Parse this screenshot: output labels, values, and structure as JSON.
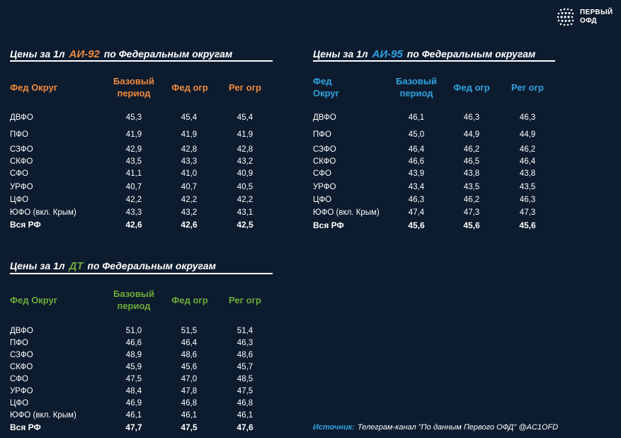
{
  "logo": {
    "line1": "ПЕРВЫЙ",
    "line2": "ОФД"
  },
  "colors": {
    "ai92": "#f08a3c",
    "ai95": "#2ea3e0",
    "dt": "#6cab3a",
    "background": "#0d1b2e"
  },
  "ai92": {
    "title_pre": "Цены за 1л",
    "fuel": "АИ-92",
    "title_post": "по Федеральным округам",
    "headers": {
      "district": "Фед Округ",
      "base_1": "Базовый",
      "base_2": "период",
      "fed": "Фед огр",
      "reg": "Рег огр"
    },
    "rows": [
      {
        "name": "ДВФО",
        "base": "45,3",
        "fed": "45,4",
        "reg": "45,4"
      },
      {
        "name": "ПФО",
        "base": "41,9",
        "fed": "41,9",
        "reg": "41,9"
      },
      {
        "name": "СЗФО",
        "base": "42,9",
        "fed": "42,8",
        "reg": "42,8"
      },
      {
        "name": "СКФО",
        "base": "43,5",
        "fed": "43,3",
        "reg": "43,2"
      },
      {
        "name": "СФО",
        "base": "41,1",
        "fed": "41,0",
        "reg": "40,9"
      },
      {
        "name": "УРФО",
        "base": "40,7",
        "fed": "40,7",
        "reg": "40,5"
      },
      {
        "name": "ЦФО",
        "base": "42,2",
        "fed": "42,2",
        "reg": "42,2"
      },
      {
        "name": "ЮФО (вкл. Крым)",
        "base": "43,3",
        "fed": "43,2",
        "reg": "43,1"
      }
    ],
    "total": {
      "name": "Вся РФ",
      "base": "42,6",
      "fed": "42,6",
      "reg": "42,5"
    }
  },
  "ai95": {
    "title_pre": "Цены за 1л",
    "fuel": "АИ-95",
    "title_post": "по Федеральным округам",
    "headers": {
      "district_1": "Фед",
      "district_2": "Округ",
      "base_1": "Базовый",
      "base_2": "период",
      "fed": "Фед огр",
      "reg": "Рег огр"
    },
    "rows": [
      {
        "name": "ДВФО",
        "base": "46,1",
        "fed": "46,3",
        "reg": "46,3"
      },
      {
        "name": "ПФО",
        "base": "45,0",
        "fed": "44,9",
        "reg": "44,9"
      },
      {
        "name": "СЗФО",
        "base": "46,4",
        "fed": "46,2",
        "reg": "46,2"
      },
      {
        "name": "СКФО",
        "base": "46,6",
        "fed": "46,5",
        "reg": "46,4"
      },
      {
        "name": "СФО",
        "base": "43,9",
        "fed": "43,8",
        "reg": "43,8"
      },
      {
        "name": "УРФО",
        "base": "43,4",
        "fed": "43,5",
        "reg": "43,5"
      },
      {
        "name": "ЦФО",
        "base": "46,3",
        "fed": "46,2",
        "reg": "46,3"
      },
      {
        "name": "ЮФО (вкл. Крым)",
        "base": "47,4",
        "fed": "47,3",
        "reg": "47,3"
      }
    ],
    "total": {
      "name": "Вся РФ",
      "base": "45,6",
      "fed": "45,6",
      "reg": "45,6"
    }
  },
  "dt": {
    "title_pre": "Цены за 1л",
    "fuel": "ДТ",
    "title_post": "по Федеральным округам",
    "headers": {
      "district": "Фед Округ",
      "base_1": "Базовый",
      "base_2": "период",
      "fed": "Фед огр",
      "reg": "Рег огр"
    },
    "rows": [
      {
        "name": "ДВФО",
        "base": "51,0",
        "fed": "51,5",
        "reg": "51,4"
      },
      {
        "name": "ПФО",
        "base": "46,6",
        "fed": "46,4",
        "reg": "46,3"
      },
      {
        "name": "СЗФО",
        "base": "48,9",
        "fed": "48,6",
        "reg": "48,6"
      },
      {
        "name": "СКФО",
        "base": "45,9",
        "fed": "45,6",
        "reg": "45,7"
      },
      {
        "name": "СФО",
        "base": "47,5",
        "fed": "47,0",
        "reg": "48,5"
      },
      {
        "name": "УРФО",
        "base": "48,4",
        "fed": "47,8",
        "reg": "47,5"
      },
      {
        "name": "ЦФО",
        "base": "46,9",
        "fed": "46,8",
        "reg": "46,8"
      },
      {
        "name": "ЮФО (вкл. Крым)",
        "base": "46,1",
        "fed": "46,1",
        "reg": "46,1"
      }
    ],
    "total": {
      "name": "Вся РФ",
      "base": "47,7",
      "fed": "47,5",
      "reg": "47,6"
    }
  },
  "source": {
    "label": "Источник:",
    "text": "Телеграм-канал \"По данным Первого ОФД\" @AC1OFD"
  }
}
